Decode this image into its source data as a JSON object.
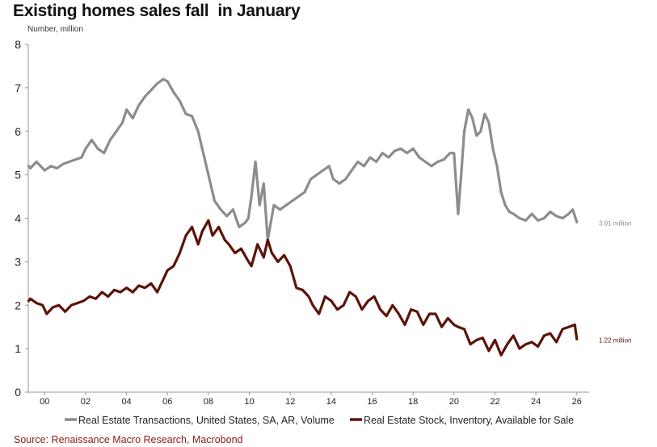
{
  "chart_data": {
    "type": "line",
    "title": "Existing homes sales fall  in January",
    "ylabel": "Number, million",
    "source": "Source: Renaissance Macro Research, Macrobond",
    "ylim": [
      0,
      8
    ],
    "xlim": [
      1999.2,
      2026.6
    ],
    "yticks": [
      "0",
      "1",
      "2",
      "3",
      "4",
      "5",
      "6",
      "7",
      "8"
    ],
    "xticks": [
      {
        "year": 2000,
        "label": "00"
      },
      {
        "year": 2002,
        "label": "02"
      },
      {
        "year": 2004,
        "label": "04"
      },
      {
        "year": 2006,
        "label": "06"
      },
      {
        "year": 2008,
        "label": "08"
      },
      {
        "year": 2010,
        "label": "10"
      },
      {
        "year": 2012,
        "label": "12"
      },
      {
        "year": 2014,
        "label": "14"
      },
      {
        "year": 2016,
        "label": "16"
      },
      {
        "year": 2018,
        "label": "18"
      },
      {
        "year": 2020,
        "label": "20"
      },
      {
        "year": 2022,
        "label": "22"
      },
      {
        "year": 2024,
        "label": "24"
      },
      {
        "year": 2026,
        "label": "26"
      }
    ],
    "series": [
      {
        "name": "Real Estate Transactions, United States, SA, AR, Volume",
        "color": "#8c8c8c",
        "end_label": "3.91 million",
        "x": [
          1999.0,
          1999.3,
          1999.6,
          2000.0,
          2000.3,
          2000.6,
          2000.9,
          2001.2,
          2001.5,
          2001.8,
          2002.0,
          2002.3,
          2002.6,
          2002.9,
          2003.2,
          2003.5,
          2003.8,
          2004.0,
          2004.3,
          2004.6,
          2004.9,
          2005.2,
          2005.5,
          2005.8,
          2006.0,
          2006.3,
          2006.6,
          2006.9,
          2007.2,
          2007.5,
          2007.8,
          2008.0,
          2008.3,
          2008.6,
          2008.9,
          2009.2,
          2009.5,
          2009.8,
          2009.95,
          2010.1,
          2010.3,
          2010.5,
          2010.7,
          2010.9,
          2011.2,
          2011.5,
          2011.8,
          2012.1,
          2012.4,
          2012.7,
          2013.0,
          2013.3,
          2013.6,
          2013.9,
          2014.1,
          2014.4,
          2014.7,
          2015.0,
          2015.3,
          2015.6,
          2015.9,
          2016.2,
          2016.5,
          2016.8,
          2017.1,
          2017.4,
          2017.7,
          2018.0,
          2018.3,
          2018.6,
          2018.9,
          2019.2,
          2019.5,
          2019.8,
          2020.0,
          2020.2,
          2020.35,
          2020.5,
          2020.7,
          2020.9,
          2021.1,
          2021.3,
          2021.5,
          2021.7,
          2021.9,
          2022.1,
          2022.3,
          2022.5,
          2022.7,
          2022.9,
          2023.2,
          2023.5,
          2023.8,
          2024.1,
          2024.4,
          2024.7,
          2025.0,
          2025.3,
          2025.6,
          2025.8,
          2026.0
        ],
        "values": [
          5.2,
          5.15,
          5.3,
          5.1,
          5.2,
          5.15,
          5.25,
          5.3,
          5.35,
          5.4,
          5.6,
          5.8,
          5.6,
          5.5,
          5.8,
          6.0,
          6.2,
          6.5,
          6.3,
          6.6,
          6.8,
          6.95,
          7.1,
          7.2,
          7.15,
          6.9,
          6.7,
          6.4,
          6.35,
          6.0,
          5.4,
          5.0,
          4.4,
          4.2,
          4.05,
          4.2,
          3.8,
          3.9,
          4.0,
          4.5,
          5.3,
          4.3,
          4.8,
          3.5,
          4.3,
          4.2,
          4.3,
          4.4,
          4.5,
          4.6,
          4.9,
          5.0,
          5.1,
          5.2,
          4.9,
          4.8,
          4.9,
          5.1,
          5.3,
          5.2,
          5.4,
          5.3,
          5.5,
          5.4,
          5.55,
          5.6,
          5.5,
          5.6,
          5.4,
          5.3,
          5.2,
          5.3,
          5.35,
          5.5,
          5.5,
          4.1,
          5.0,
          6.0,
          6.5,
          6.3,
          5.9,
          6.0,
          6.4,
          6.2,
          5.6,
          5.2,
          4.6,
          4.3,
          4.15,
          4.1,
          4.0,
          3.95,
          4.1,
          3.95,
          4.0,
          4.15,
          4.05,
          4.0,
          4.1,
          4.2,
          3.91
        ]
      },
      {
        "name": "Real Estate Stock, Inventory, Available for Sale",
        "color": "#5c1308",
        "end_label": "1.22 million",
        "x": [
          1999.0,
          1999.3,
          1999.6,
          1999.9,
          2000.1,
          2000.4,
          2000.7,
          2001.0,
          2001.3,
          2001.6,
          2001.9,
          2002.2,
          2002.5,
          2002.8,
          2003.1,
          2003.4,
          2003.7,
          2004.0,
          2004.3,
          2004.6,
          2004.9,
          2005.2,
          2005.5,
          2005.8,
          2006.0,
          2006.3,
          2006.6,
          2006.9,
          2007.2,
          2007.5,
          2007.7,
          2008.0,
          2008.2,
          2008.5,
          2008.8,
          2009.0,
          2009.3,
          2009.6,
          2009.9,
          2010.1,
          2010.4,
          2010.7,
          2010.9,
          2011.1,
          2011.4,
          2011.7,
          2012.0,
          2012.3,
          2012.6,
          2012.9,
          2013.1,
          2013.4,
          2013.7,
          2014.0,
          2014.3,
          2014.6,
          2014.9,
          2015.2,
          2015.5,
          2015.8,
          2016.1,
          2016.4,
          2016.7,
          2017.0,
          2017.3,
          2017.6,
          2017.9,
          2018.2,
          2018.5,
          2018.8,
          2019.1,
          2019.4,
          2019.7,
          2020.0,
          2020.2,
          2020.5,
          2020.8,
          2021.1,
          2021.4,
          2021.7,
          2022.0,
          2022.3,
          2022.6,
          2022.9,
          2023.2,
          2023.5,
          2023.8,
          2024.1,
          2024.4,
          2024.7,
          2025.0,
          2025.3,
          2025.6,
          2025.9,
          2026.0
        ],
        "values": [
          2.1,
          2.15,
          2.05,
          2.0,
          1.8,
          1.95,
          2.0,
          1.85,
          2.0,
          2.05,
          2.1,
          2.2,
          2.15,
          2.3,
          2.2,
          2.35,
          2.3,
          2.4,
          2.3,
          2.45,
          2.4,
          2.5,
          2.3,
          2.6,
          2.8,
          2.9,
          3.2,
          3.6,
          3.8,
          3.4,
          3.7,
          3.95,
          3.6,
          3.8,
          3.5,
          3.4,
          3.2,
          3.3,
          3.05,
          2.9,
          3.4,
          3.1,
          3.5,
          3.2,
          3.0,
          3.15,
          2.9,
          2.4,
          2.35,
          2.2,
          2.0,
          1.8,
          2.2,
          2.1,
          1.9,
          2.0,
          2.3,
          2.2,
          1.9,
          2.1,
          2.2,
          1.9,
          1.75,
          2.0,
          1.8,
          1.55,
          1.9,
          1.85,
          1.55,
          1.8,
          1.8,
          1.5,
          1.7,
          1.55,
          1.5,
          1.45,
          1.1,
          1.2,
          1.25,
          0.95,
          1.2,
          0.85,
          1.1,
          1.3,
          1.0,
          1.1,
          1.15,
          1.05,
          1.3,
          1.35,
          1.15,
          1.45,
          1.5,
          1.55,
          1.22
        ]
      }
    ]
  }
}
